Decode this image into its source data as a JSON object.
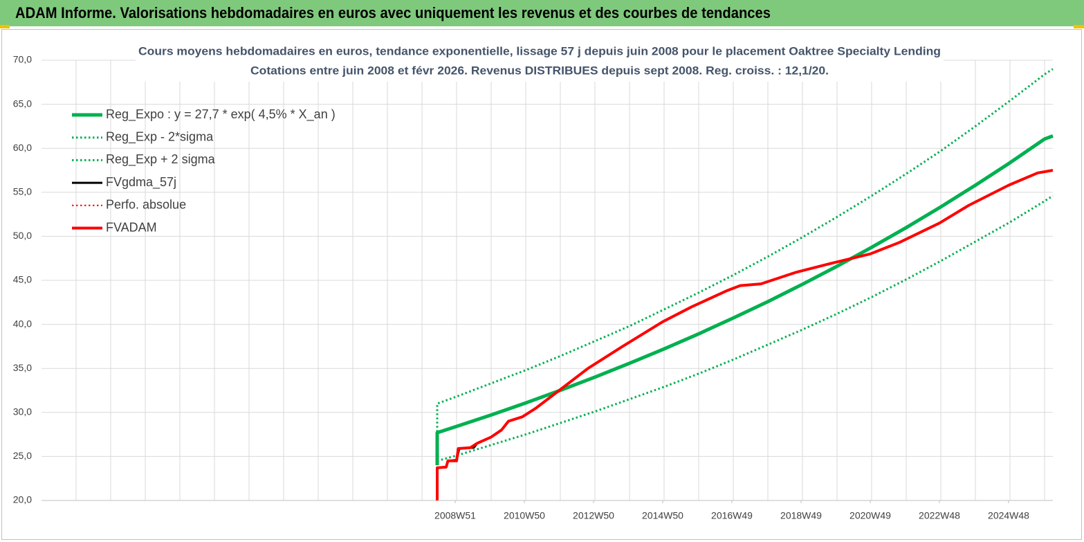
{
  "header": {
    "title": "ADAM Informe. Valorisations hebdomadaires en euros avec uniquement les revenus et des courbes de tendances"
  },
  "chart_data": {
    "type": "line",
    "title": "Cours moyens hebdomadaires en euros, tendance exponentielle, lissage 57 j depuis juin 2008 pour le placement Oaktree Specialty Lending",
    "subtitle": "Cotations entre juin 2008 et févr 2026. Revenus DISTRIBUES depuis sept 2008. Reg. croiss. : 12,1/20.",
    "xlim": [
      1997,
      2026.24
    ],
    "xticks": [
      {
        "value": 2008.96,
        "label": "2008W51"
      },
      {
        "value": 2010.96,
        "label": "2010W50"
      },
      {
        "value": 2012.96,
        "label": "2012W50"
      },
      {
        "value": 2014.96,
        "label": "2014W50"
      },
      {
        "value": 2016.96,
        "label": "2016W49"
      },
      {
        "value": 2018.96,
        "label": "2018W49"
      },
      {
        "value": 2020.96,
        "label": "2020W49"
      },
      {
        "value": 2022.96,
        "label": "2022W48"
      },
      {
        "value": 2024.96,
        "label": "2024W48"
      }
    ],
    "xgrid": [
      1998,
      1999,
      2000,
      2001,
      2002,
      2003,
      2004,
      2005,
      2006,
      2007,
      2008,
      2009,
      2010,
      2011,
      2012,
      2013,
      2014,
      2015,
      2016,
      2017,
      2018,
      2019,
      2020,
      2021,
      2022,
      2023,
      2024,
      2025,
      2026
    ],
    "ylim": [
      20,
      70
    ],
    "yticks": [
      {
        "value": 20,
        "label": "20,0"
      },
      {
        "value": 25,
        "label": "25,0"
      },
      {
        "value": 30,
        "label": "30,0"
      },
      {
        "value": 35,
        "label": "35,0"
      },
      {
        "value": 40,
        "label": "40,0"
      },
      {
        "value": 45,
        "label": "45,0"
      },
      {
        "value": 50,
        "label": "50,0"
      },
      {
        "value": 55,
        "label": "55,0"
      },
      {
        "value": 60,
        "label": "60,0"
      },
      {
        "value": 65,
        "label": "65,0"
      },
      {
        "value": 70,
        "label": "70,0"
      }
    ],
    "grid": true,
    "legend": "top-left",
    "series": [
      {
        "name": "Reg_Expo : y = 27,7 * exp( 4,5% *  X_an )",
        "color": "#00b050",
        "line_style": "solid",
        "width": 5,
        "x": [
          2008.44,
          2008.44,
          2009,
          2010,
          2011,
          2012,
          2013,
          2014,
          2015,
          2016,
          2017,
          2018,
          2019,
          2020,
          2021,
          2022,
          2023,
          2024,
          2025,
          2026,
          2026.24
        ],
        "values": [
          24.0,
          27.7,
          28.41,
          29.71,
          31.08,
          32.51,
          34.01,
          35.58,
          37.21,
          38.92,
          40.72,
          42.59,
          44.55,
          46.6,
          48.75,
          50.99,
          53.34,
          55.8,
          58.36,
          61.05,
          61.4
        ]
      },
      {
        "name": "Reg_Exp - 2*sigma",
        "color": "#00b050",
        "line_style": "dotted",
        "width": 3,
        "x": [
          2008.44,
          2009,
          2010,
          2011,
          2012,
          2013,
          2014,
          2015,
          2016,
          2017,
          2018,
          2019,
          2020,
          2021,
          2022,
          2023,
          2024,
          2025,
          2026,
          2026.24
        ],
        "values": [
          24.5,
          25.1,
          26.3,
          27.5,
          28.8,
          30.1,
          31.5,
          32.9,
          34.4,
          36.0,
          37.7,
          39.4,
          41.2,
          43.1,
          45.1,
          47.2,
          49.4,
          51.6,
          54.0,
          54.6
        ]
      },
      {
        "name": "Reg_Exp + 2 sigma",
        "color": "#00b050",
        "line_style": "dotted",
        "width": 3,
        "x": [
          2008.44,
          2008.44,
          2009,
          2010,
          2011,
          2012,
          2013,
          2014,
          2015,
          2016,
          2017,
          2018,
          2019,
          2020,
          2021,
          2022,
          2023,
          2024,
          2025,
          2026,
          2026.24
        ],
        "values": [
          24.5,
          31.0,
          31.8,
          33.3,
          34.8,
          36.4,
          38.1,
          39.8,
          41.7,
          43.6,
          45.6,
          47.7,
          49.9,
          52.2,
          54.6,
          57.1,
          59.7,
          62.5,
          65.4,
          68.4,
          69.0
        ]
      },
      {
        "name": "FVgdma_57j",
        "color": "#000000",
        "line_style": "solid",
        "width": 3,
        "x": [
          2008.44,
          2008.7,
          2008.75,
          2009.0,
          2009.08,
          2009.5,
          2009.6,
          2010.0
        ],
        "values": [
          23.7,
          23.8,
          24.5,
          24.6,
          25.9,
          26.0,
          26.5,
          27.2
        ]
      },
      {
        "name": "Perfo. absolue",
        "color": "#ff0000",
        "line_style": "dotted",
        "width": 2,
        "x": [],
        "values": []
      },
      {
        "name": "FVADAM",
        "color": "#ff0000",
        "line_style": "solid",
        "width": 4,
        "x": [
          2008.44,
          2008.44,
          2008.7,
          2008.75,
          2009.0,
          2009.05,
          2009.4,
          2009.6,
          2010.0,
          2010.3,
          2010.5,
          2010.9,
          2011.3,
          2011.8,
          2012.8,
          2013.8,
          2014.96,
          2015.8,
          2016.8,
          2017.2,
          2017.8,
          2018.8,
          2019.8,
          2020.96,
          2021.8,
          2022.96,
          2023.8,
          2024.96,
          2025.8,
          2026.24
        ],
        "values": [
          20,
          23.7,
          23.8,
          24.5,
          24.5,
          25.9,
          26.0,
          26.5,
          27.2,
          28.0,
          29.0,
          29.5,
          30.5,
          32.0,
          35.0,
          37.5,
          40.3,
          42.0,
          43.8,
          44.4,
          44.6,
          45.9,
          46.9,
          48.0,
          49.3,
          51.5,
          53.5,
          55.8,
          57.2,
          57.5
        ]
      }
    ]
  }
}
